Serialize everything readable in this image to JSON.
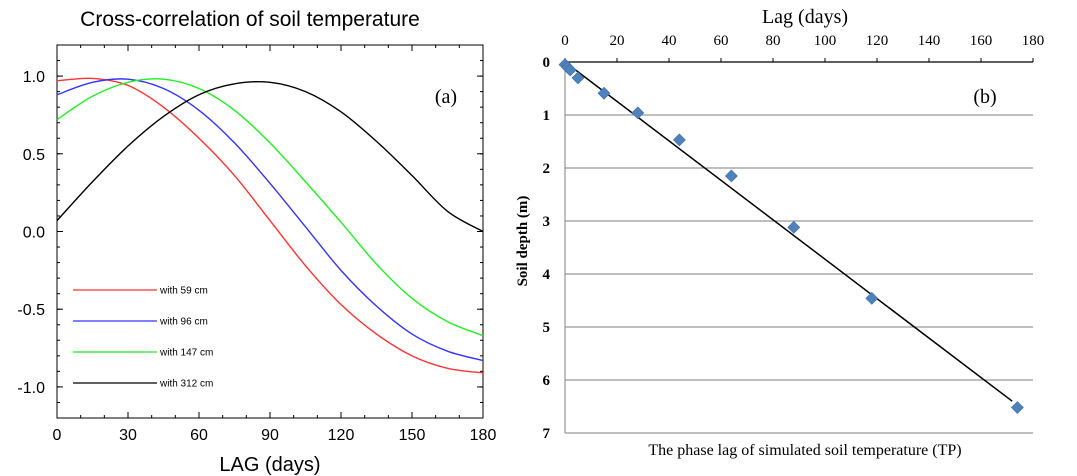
{
  "chart_data": [
    {
      "panel": "(a)",
      "type": "line",
      "title": "Cross-correlation of soil temperature",
      "xlabel": "LAG (days)",
      "ylabel": "",
      "xlim": [
        0,
        180
      ],
      "ylim": [
        -1.2,
        1.2
      ],
      "xticks": [
        0,
        30,
        60,
        90,
        120,
        150,
        180
      ],
      "yticks": [
        -1.0,
        -0.5,
        0.0,
        0.5,
        1.0
      ],
      "ytick_labels": [
        "-1.0",
        "-0.5",
        "0.0",
        "0.5",
        "1.0"
      ],
      "legend_position": "lower-left",
      "grid": false,
      "series": [
        {
          "name": "with 59 cm",
          "color": "#ff3333",
          "x": [
            0,
            15,
            30,
            45,
            60,
            75,
            90,
            105,
            120,
            135,
            150,
            165,
            180
          ],
          "y": [
            0.97,
            0.985,
            0.94,
            0.8,
            0.6,
            0.36,
            0.07,
            -0.22,
            -0.47,
            -0.66,
            -0.8,
            -0.88,
            -0.91
          ]
        },
        {
          "name": "with 96 cm",
          "color": "#3333ff",
          "x": [
            0,
            15,
            30,
            45,
            60,
            75,
            90,
            105,
            120,
            135,
            150,
            165,
            180
          ],
          "y": [
            0.88,
            0.96,
            0.98,
            0.92,
            0.78,
            0.57,
            0.31,
            0.03,
            -0.25,
            -0.48,
            -0.66,
            -0.77,
            -0.83
          ]
        },
        {
          "name": "with 147 cm",
          "color": "#22ee22",
          "x": [
            0,
            15,
            30,
            45,
            60,
            75,
            90,
            105,
            120,
            135,
            150,
            165,
            180
          ],
          "y": [
            0.72,
            0.87,
            0.96,
            0.98,
            0.92,
            0.78,
            0.57,
            0.32,
            0.06,
            -0.21,
            -0.43,
            -0.58,
            -0.67
          ]
        },
        {
          "name": "with 312 cm",
          "color": "#000000",
          "x": [
            0,
            15,
            30,
            45,
            60,
            75,
            90,
            105,
            120,
            135,
            150,
            165,
            180
          ],
          "y": [
            0.07,
            0.32,
            0.55,
            0.74,
            0.88,
            0.95,
            0.96,
            0.9,
            0.77,
            0.58,
            0.36,
            0.13,
            0.0
          ]
        }
      ]
    },
    {
      "panel": "(b)",
      "type": "scatter",
      "title": "",
      "x_top_label": "Lag (days)",
      "xlabel": "The phase lag of simulated soil temperature (TP)",
      "ylabel": "Soil depth (m)",
      "xlim": [
        0,
        180
      ],
      "ylim": [
        7,
        0
      ],
      "xticks": [
        0,
        20,
        40,
        60,
        80,
        100,
        120,
        140,
        160,
        180
      ],
      "yticks": [
        0,
        1,
        2,
        3,
        4,
        5,
        6,
        7
      ],
      "grid": true,
      "marker_color": "#4f81bd",
      "points": [
        {
          "x": 0,
          "y": 0.05
        },
        {
          "x": 1,
          "y": 0.1
        },
        {
          "x": 2,
          "y": 0.15
        },
        {
          "x": 5,
          "y": 0.3
        },
        {
          "x": 15,
          "y": 0.59
        },
        {
          "x": 28,
          "y": 0.96
        },
        {
          "x": 44,
          "y": 1.47
        },
        {
          "x": 64,
          "y": 2.15
        },
        {
          "x": 88,
          "y": 3.12
        },
        {
          "x": 118,
          "y": 4.46
        },
        {
          "x": 174,
          "y": 6.52
        }
      ],
      "fit_line": {
        "x": [
          0,
          172
        ],
        "y": [
          0.0,
          6.4
        ]
      }
    }
  ],
  "annotations": {
    "panel_a_label": "(a)",
    "panel_b_label": "(b)"
  }
}
